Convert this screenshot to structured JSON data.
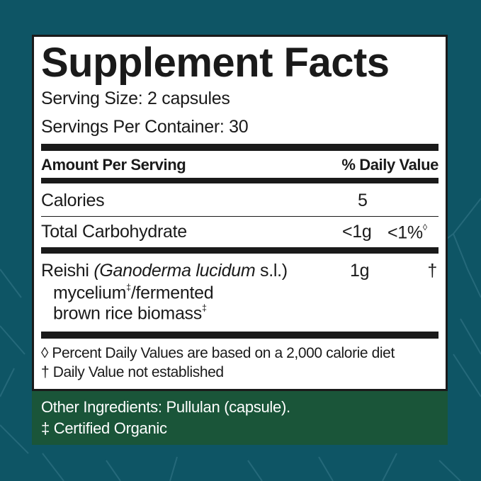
{
  "title": "Supplement Facts",
  "serving_size": "Serving Size: 2 capsules",
  "servings_per_container": "Servings Per Container: 30",
  "header": {
    "amount": "Amount Per Serving",
    "dv": "% Daily Value"
  },
  "rows": [
    {
      "name": "Calories",
      "amount": "5",
      "dv": ""
    },
    {
      "name": "Total Carbohydrate",
      "amount": "<1g",
      "dv": "<1%",
      "dv_mark": "◊"
    }
  ],
  "ingredient": {
    "name": "Reishi",
    "latin": "(Ganoderma lucidum",
    "latin_suffix": "s.l.)",
    "line2": "mycelium",
    "line2_mark": "‡",
    "line2_rest": "/fermented",
    "line3": "brown rice biomass",
    "line3_mark": "‡",
    "amount": "1g",
    "dv": "†"
  },
  "footnotes": [
    "◊ Percent Daily Values are based on a 2,000 calorie diet",
    "† Daily Value not established"
  ],
  "other_ingredients": "Other Ingredients: Pullulan (capsule).",
  "organic_note": "‡ Certified Organic",
  "colors": {
    "background": "#0e5565",
    "panel": "#ffffff",
    "other_ingredients_bg": "#1a5539",
    "text": "#1a1a1a"
  }
}
